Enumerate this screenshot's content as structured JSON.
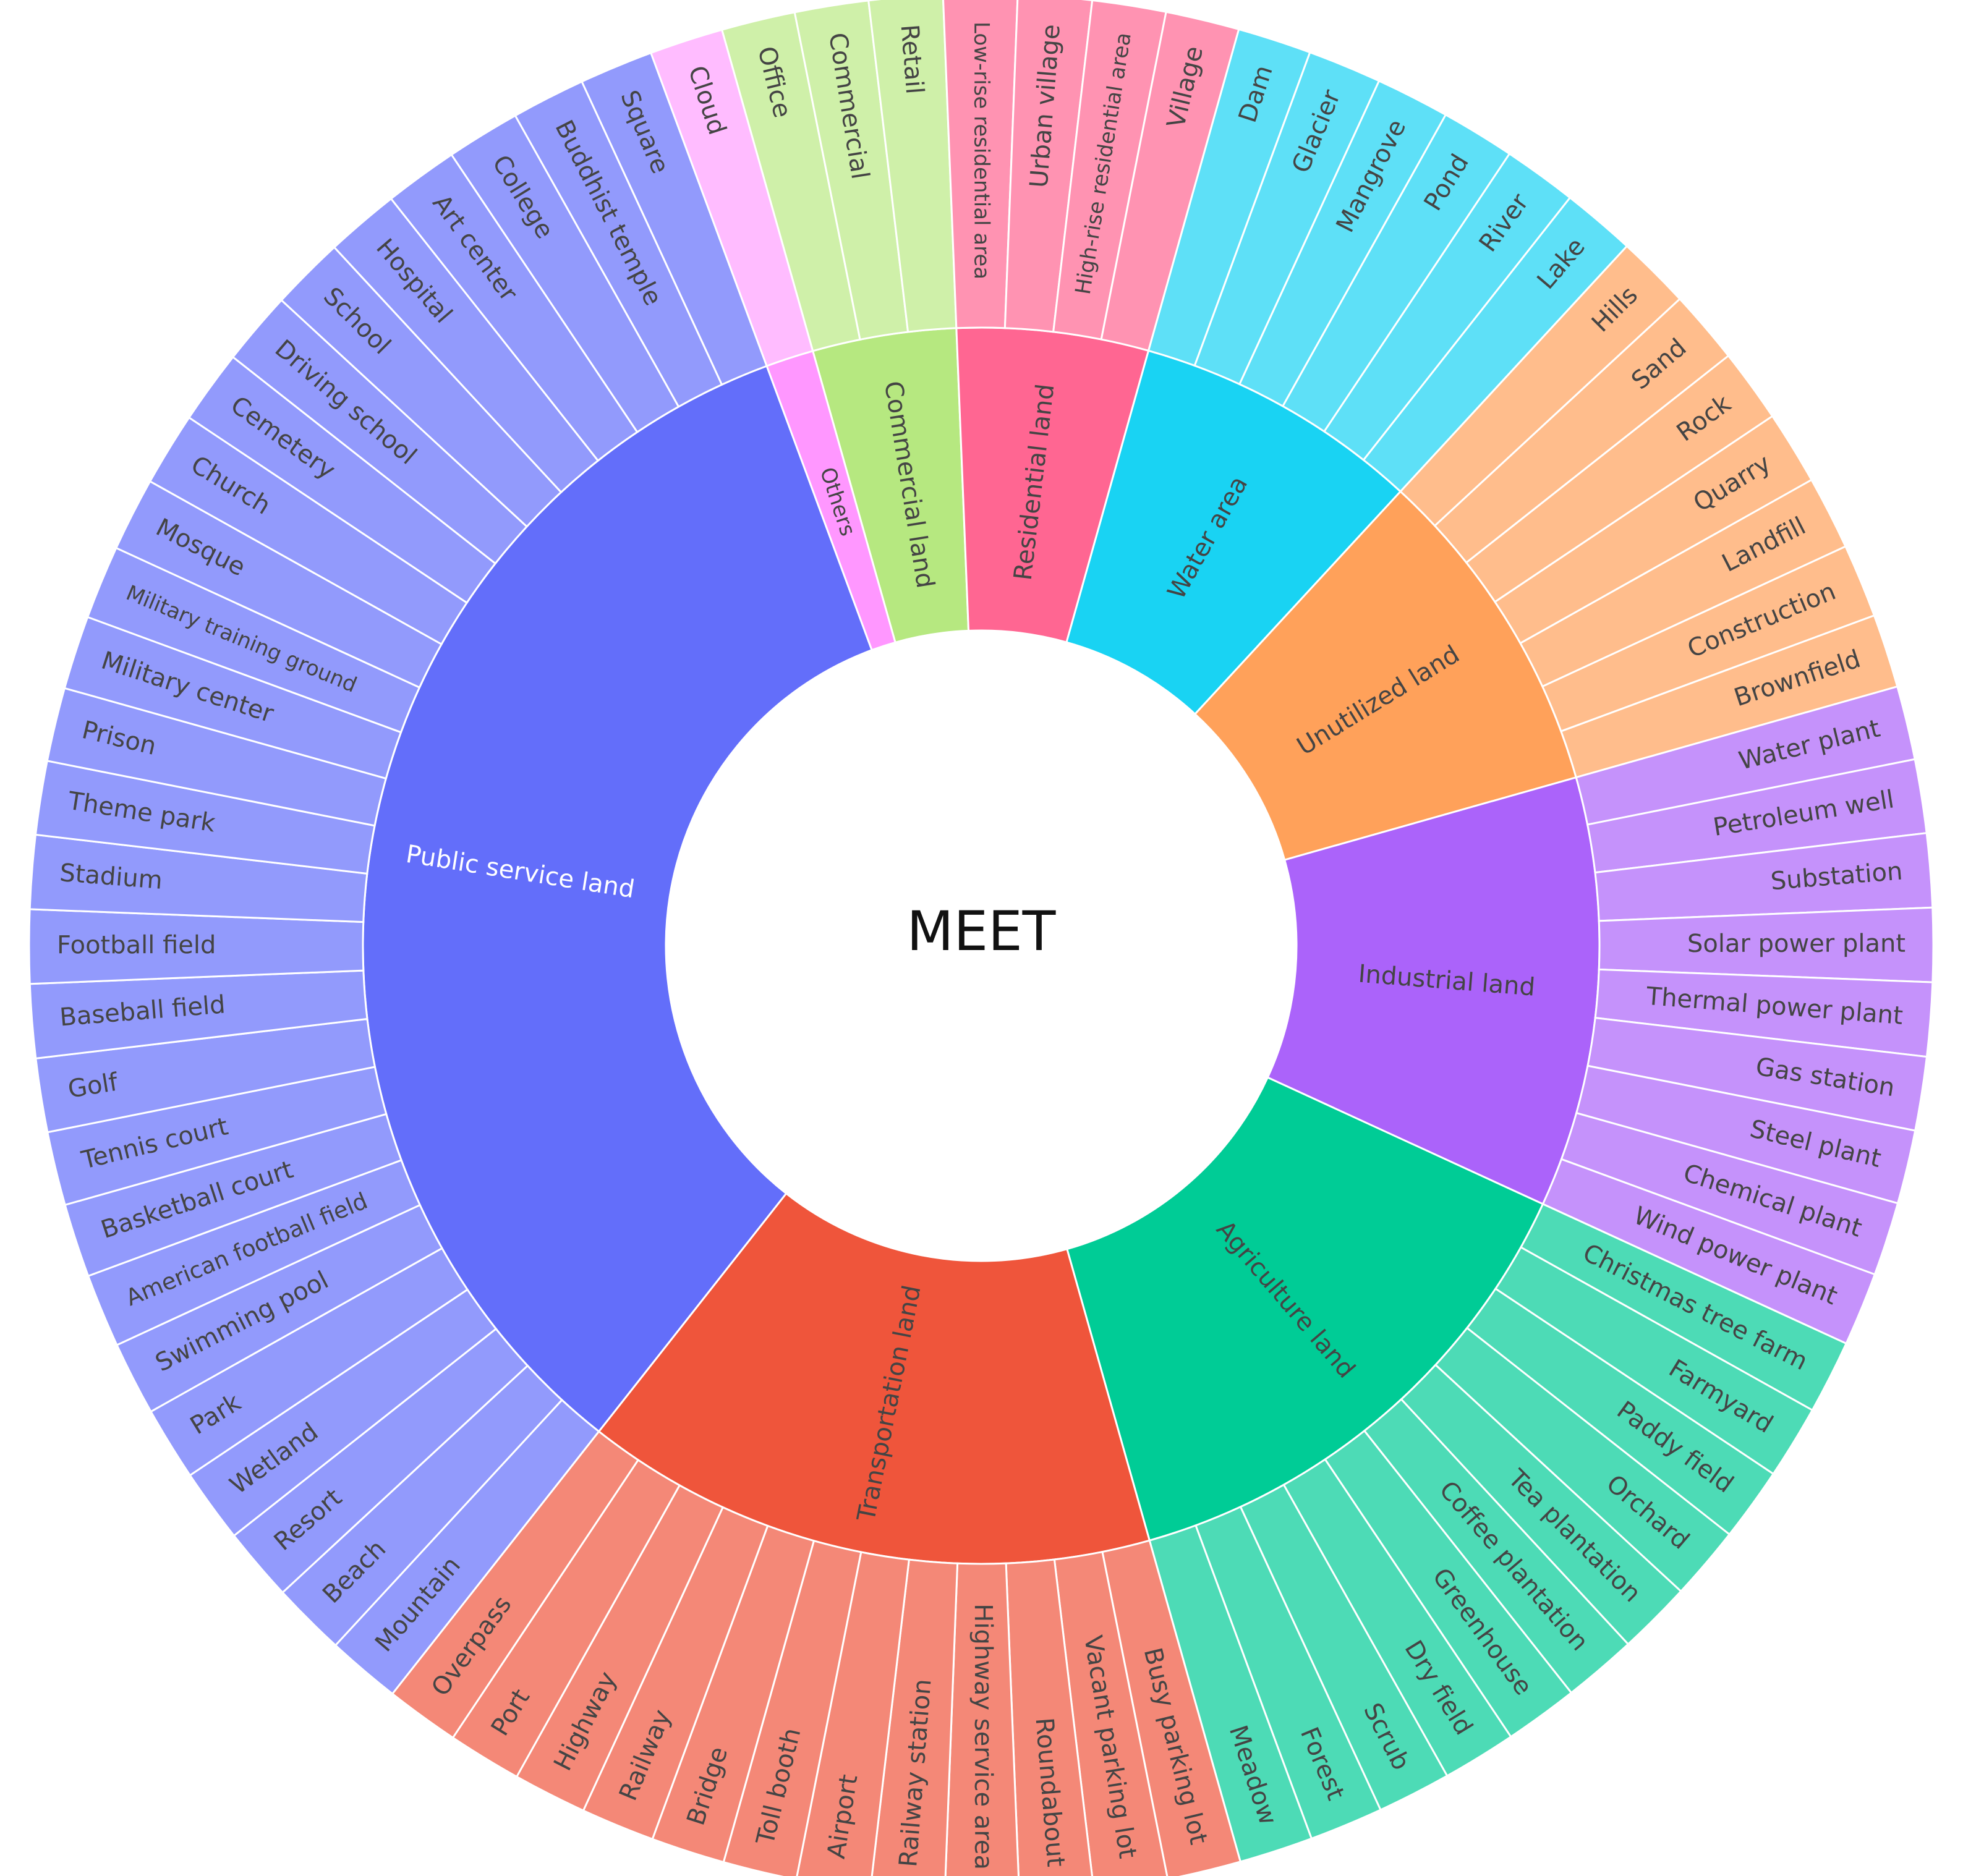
{
  "chart_data": {
    "type": "sunburst",
    "center_label": "MEET",
    "categories": [
      {
        "name": "Others",
        "color": "#FF97FF",
        "light": "#FFBCFF",
        "text": "#444444",
        "children": [
          "Cloud"
        ]
      },
      {
        "name": "Commercial land",
        "color": "#B6E880",
        "light": "#CFF0A9",
        "text": "#444444",
        "children": [
          "Office",
          "Commercial",
          "Retail"
        ]
      },
      {
        "name": "Residential land",
        "color": "#FF6692",
        "light": "#FF93B2",
        "text": "#444444",
        "children": [
          "Low-rise residential area",
          "Urban village",
          "High-rise residential area",
          "Village"
        ]
      },
      {
        "name": "Water area",
        "color": "#19D3F3",
        "light": "#5EE0F7",
        "text": "#444444",
        "children": [
          "Dam",
          "Glacier",
          "Mangrove",
          "Pond",
          "River",
          "Lake"
        ]
      },
      {
        "name": "Unutilized land",
        "color": "#FFA15A",
        "light": "#FFBD8C",
        "text": "#444444",
        "children": [
          "Hills",
          "Sand",
          "Rock",
          "Quarry",
          "Landfill",
          "Construction",
          "Brownfield"
        ]
      },
      {
        "name": "Industrial land",
        "color": "#AB63FA",
        "light": "#C592FB",
        "text": "#444444",
        "children": [
          "Water plant",
          "Petroleum well",
          "Substation",
          "Solar power plant",
          "Thermal power plant",
          "Gas station",
          "Steel plant",
          "Chemical plant",
          "Wind power plant"
        ]
      },
      {
        "name": "Agriculture land",
        "color": "#00CC96",
        "light": "#4DDBB6",
        "text": "#444444",
        "children": [
          "Christmas tree farm",
          "Farmyard",
          "Paddy field",
          "Orchard",
          "Tea plantation",
          "Coffee plantation",
          "Greenhouse",
          "Dry field",
          "Scrub",
          "Forest",
          "Meadow"
        ]
      },
      {
        "name": "Transportation land",
        "color": "#EF553B",
        "light": "#F48877",
        "text": "#444444",
        "children": [
          "Busy parking lot",
          "Vacant parking lot",
          "Roundabout",
          "Highway service area",
          "Railway station",
          "Airport",
          "Toll booth",
          "Bridge",
          "Railway",
          "Highway",
          "Port",
          "Overpass"
        ]
      },
      {
        "name": "Public service land",
        "color": "#636EFA",
        "light": "#929AFC",
        "text": "#ffffff",
        "children": [
          "Mountain",
          "Beach",
          "Resort",
          "Wetland",
          "Park",
          "Swimming pool",
          "American football field",
          "Basketball court",
          "Tennis court",
          "Golf",
          "Baseball field",
          "Football field",
          "Stadium",
          "Theme park",
          "Prison",
          "Military center",
          "Military training ground",
          "Mosque",
          "Church",
          "Cemetery",
          "Driving school",
          "School",
          "Hospital",
          "Art center",
          "College",
          "Buddhist temple",
          "Square"
        ]
      }
    ]
  }
}
